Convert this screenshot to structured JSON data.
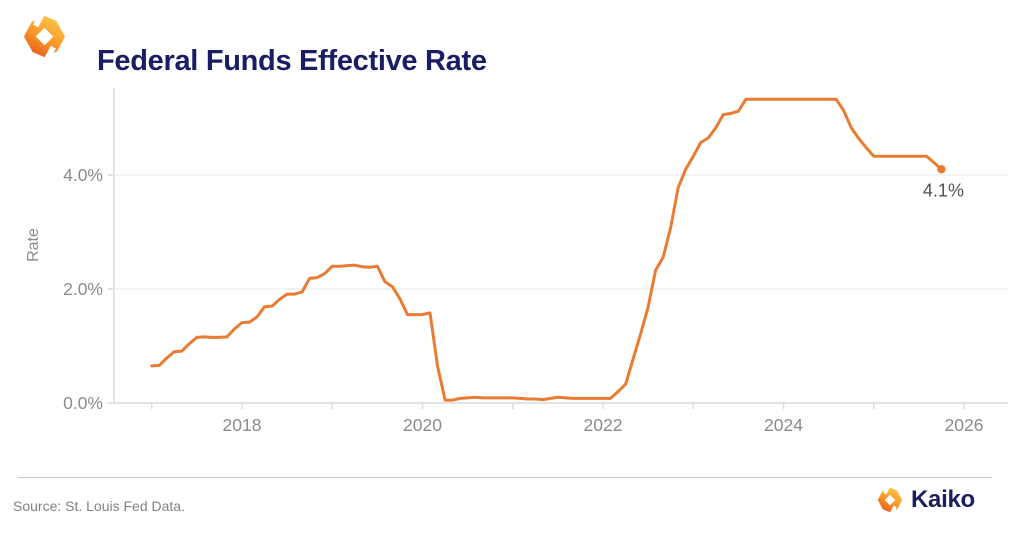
{
  "header": {
    "title": "Federal Funds Effective Rate"
  },
  "icons": {
    "brand_mark": "kaiko-hex-bracket-mark",
    "brand_mark_colors": [
      "#FFC94B",
      "#F99C2C",
      "#EF6A1E",
      "#EA4E1B"
    ]
  },
  "footer": {
    "source": "Source: St. Louis Fed Data.",
    "brand_label": "Kaiko"
  },
  "chart_data": {
    "type": "line",
    "title": "Federal Funds Effective Rate",
    "xlabel": "",
    "ylabel": "Rate",
    "legend": "none",
    "grid": "horizontal-light",
    "line_color": "#E97C32",
    "axis_color": "#e3e3e3",
    "grid_color": "#f1f1f1",
    "tick_label_color": "#8b8b8b",
    "annotation_color": "#525252",
    "end_label": "4.1%",
    "ylim": [
      0,
      5.6
    ],
    "xlim_years": [
      2016.6,
      2026.5
    ],
    "yticks": [
      {
        "value": 0,
        "label": "0.0%"
      },
      {
        "value": 2,
        "label": "2.0%"
      },
      {
        "value": 4,
        "label": "4.0%"
      }
    ],
    "xticks_minor_years": [
      2017,
      2018,
      2019,
      2020,
      2021,
      2022,
      2023,
      2024,
      2025,
      2026
    ],
    "xticks_labeled_years": [
      2018,
      2020,
      2022,
      2024,
      2026
    ],
    "series": [
      {
        "name": "Federal Funds Effective Rate",
        "unit": "percent",
        "frequency": "monthly",
        "data_by_year": [
          {
            "year": 2017,
            "values": [
              0.65,
              0.66,
              0.79,
              0.9,
              0.91,
              1.04,
              1.15,
              1.16,
              1.15,
              1.15,
              1.16,
              1.3
            ]
          },
          {
            "year": 2018,
            "values": [
              1.41,
              1.42,
              1.51,
              1.69,
              1.7,
              1.82,
              1.91,
              1.91,
              1.95,
              2.19,
              2.2,
              2.27
            ]
          },
          {
            "year": 2019,
            "values": [
              2.4,
              2.4,
              2.41,
              2.42,
              2.39,
              2.38,
              2.4,
              2.13,
              2.04,
              1.83,
              1.55,
              1.55
            ]
          },
          {
            "year": 2020,
            "values": [
              1.55,
              1.58,
              0.65,
              0.05,
              0.05,
              0.08,
              0.09,
              0.1,
              0.09,
              0.09,
              0.09,
              0.09
            ]
          },
          {
            "year": 2021,
            "values": [
              0.09,
              0.08,
              0.07,
              0.07,
              0.06,
              0.08,
              0.1,
              0.09,
              0.08,
              0.08,
              0.08,
              0.08
            ]
          },
          {
            "year": 2022,
            "values": [
              0.08,
              0.08,
              0.2,
              0.33,
              0.77,
              1.21,
              1.68,
              2.33,
              2.56,
              3.08,
              3.78,
              4.1
            ]
          },
          {
            "year": 2023,
            "values": [
              4.33,
              4.57,
              4.65,
              4.83,
              5.06,
              5.08,
              5.12,
              5.33,
              5.33,
              5.33,
              5.33,
              5.33
            ]
          },
          {
            "year": 2024,
            "values": [
              5.33,
              5.33,
              5.33,
              5.33,
              5.33,
              5.33,
              5.33,
              5.33,
              5.13,
              4.83,
              4.64,
              4.48
            ]
          },
          {
            "year": 2025,
            "values": [
              4.33,
              4.33,
              4.33,
              4.33,
              4.33,
              4.33,
              4.33,
              4.33,
              4.22,
              4.1
            ]
          }
        ]
      }
    ]
  }
}
